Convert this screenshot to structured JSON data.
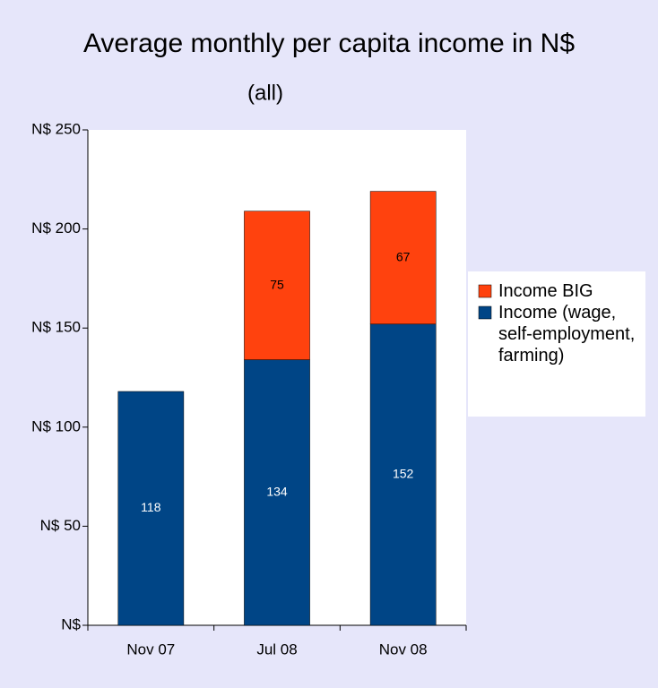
{
  "chart_data": {
    "type": "stacked_bar",
    "title": "Average monthly per capita income in N$",
    "subtitle": "(all)",
    "categories": [
      "Nov 07",
      "Jul 08",
      "Nov 08"
    ],
    "series": [
      {
        "name": "Income (wage, self-employment, farming)",
        "color": "#004586",
        "values": [
          118,
          134,
          152
        ]
      },
      {
        "name": "Income BIG",
        "color": "#ff420e",
        "values": [
          null,
          75,
          67
        ]
      }
    ],
    "ylim": [
      0,
      250
    ],
    "yticks": [
      {
        "value": 0,
        "label": "N$"
      },
      {
        "value": 50,
        "label": "N$ 50"
      },
      {
        "value": 100,
        "label": "N$ 100"
      },
      {
        "value": 150,
        "label": "N$ 150"
      },
      {
        "value": 200,
        "label": "N$ 200"
      },
      {
        "value": 250,
        "label": "N$ 250"
      }
    ],
    "grid": false,
    "legend_position": "right"
  }
}
